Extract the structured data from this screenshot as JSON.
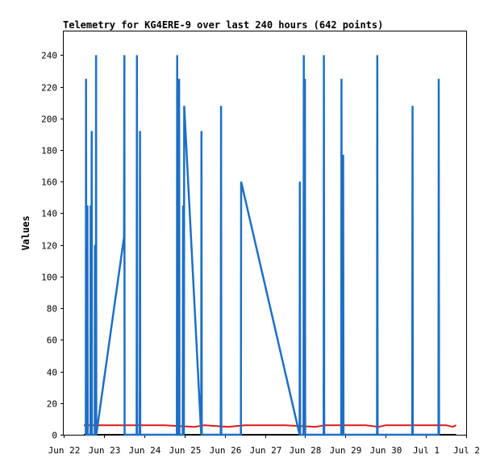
{
  "chart_data": {
    "type": "line",
    "title": "Telemetry for KG4ERE-9 over last 240 hours (642 points)",
    "xlabel": "",
    "ylabel": "Values",
    "xlim": [
      "2024-06-22",
      "2024-07-02"
    ],
    "ylim": [
      0,
      255
    ],
    "x_tick_labels": [
      "Jun 22",
      "Jun 23",
      "Jun 24",
      "Jun 25",
      "Jun 26",
      "Jun 27",
      "Jun 28",
      "Jun 29",
      "Jun 30",
      "Jul 1",
      "Jul 2"
    ],
    "y_ticks": [
      0,
      20,
      40,
      60,
      80,
      100,
      120,
      140,
      160,
      180,
      200,
      220,
      240
    ],
    "grid": false,
    "colors": {
      "series1": "#1e6fc4",
      "series2": "#e01818",
      "series3": "#000000"
    },
    "series": [
      {
        "values": [
          [
            "2024-06-22 13:12",
            0
          ],
          [
            "2024-06-22 13:20",
            225
          ],
          [
            "2024-06-22 13:30",
            0
          ],
          [
            "2024-06-22 14:00",
            0
          ],
          [
            "2024-06-22 14:08",
            145
          ],
          [
            "2024-06-22 14:16",
            0
          ],
          [
            "2024-06-22 15:55",
            0
          ],
          [
            "2024-06-22 16:05",
            145
          ],
          [
            "2024-06-22 16:15",
            0
          ],
          [
            "2024-06-22 16:30",
            0
          ],
          [
            "2024-06-22 16:40",
            192
          ],
          [
            "2024-06-22 16:50",
            0
          ],
          [
            "2024-06-22 18:30",
            0
          ],
          [
            "2024-06-22 18:38",
            120
          ],
          [
            "2024-06-22 18:46",
            0
          ],
          [
            "2024-06-22 19:10",
            0
          ],
          [
            "2024-06-22 19:18",
            240
          ],
          [
            "2024-06-22 19:26",
            0
          ],
          [
            "2024-06-23 12:00",
            125
          ],
          [
            "2024-06-23 12:10",
            240
          ],
          [
            "2024-06-23 12:20",
            0
          ],
          [
            "2024-06-23 19:30",
            0
          ],
          [
            "2024-06-23 19:40",
            240
          ],
          [
            "2024-06-23 19:50",
            0
          ],
          [
            "2024-06-23 21:20",
            0
          ],
          [
            "2024-06-23 21:30",
            192
          ],
          [
            "2024-06-23 21:40",
            0
          ],
          [
            "2024-06-24 19:30",
            0
          ],
          [
            "2024-06-24 19:40",
            240
          ],
          [
            "2024-06-24 19:50",
            0
          ],
          [
            "2024-06-24 20:40",
            0
          ],
          [
            "2024-06-24 20:50",
            225
          ],
          [
            "2024-06-24 21:00",
            0
          ],
          [
            "2024-06-24 23:00",
            0
          ],
          [
            "2024-06-24 23:10",
            145
          ],
          [
            "2024-06-24 23:20",
            0
          ],
          [
            "2024-06-24 23:40",
            0
          ],
          [
            "2024-06-24 23:50",
            208
          ],
          [
            "2024-06-25 10:00",
            0
          ],
          [
            "2024-06-25 10:10",
            192
          ],
          [
            "2024-06-25 10:20",
            0
          ],
          [
            "2024-06-25 21:40",
            0
          ],
          [
            "2024-06-25 21:50",
            208
          ],
          [
            "2024-06-25 22:00",
            0
          ],
          [
            "2024-06-26 09:40",
            0
          ],
          [
            "2024-06-26 09:50",
            160
          ],
          [
            "2024-06-27 20:40",
            0
          ],
          [
            "2024-06-27 20:50",
            160
          ],
          [
            "2024-06-27 21:00",
            0
          ],
          [
            "2024-06-27 23:00",
            0
          ],
          [
            "2024-06-27 23:10",
            240
          ],
          [
            "2024-06-27 23:20",
            0
          ],
          [
            "2024-06-27 23:40",
            0
          ],
          [
            "2024-06-27 23:50",
            225
          ],
          [
            "2024-06-28 00:00",
            0
          ],
          [
            "2024-06-28 11:00",
            0
          ],
          [
            "2024-06-28 11:10",
            240
          ],
          [
            "2024-06-28 11:20",
            0
          ],
          [
            "2024-06-28 21:30",
            0
          ],
          [
            "2024-06-28 21:40",
            225
          ],
          [
            "2024-06-28 21:50",
            0
          ],
          [
            "2024-06-28 22:30",
            0
          ],
          [
            "2024-06-28 22:40",
            177
          ],
          [
            "2024-06-28 22:50",
            0
          ],
          [
            "2024-06-29 18:50",
            0
          ],
          [
            "2024-06-29 19:00",
            240
          ],
          [
            "2024-06-29 19:10",
            0
          ],
          [
            "2024-06-30 15:50",
            0
          ],
          [
            "2024-06-30 16:00",
            208
          ],
          [
            "2024-06-30 16:10",
            0
          ],
          [
            "2024-07-01 07:30",
            0
          ],
          [
            "2024-07-01 07:40",
            225
          ],
          [
            "2024-07-01 07:50",
            0
          ]
        ]
      },
      {
        "values": [
          [
            "2024-06-22 12:00",
            6
          ],
          [
            "2024-06-23 12:00",
            6
          ],
          [
            "2024-06-24 12:00",
            6
          ],
          [
            "2024-06-25 06:00",
            5
          ],
          [
            "2024-06-25 12:00",
            6
          ],
          [
            "2024-06-26 02:00",
            5
          ],
          [
            "2024-06-26 12:00",
            6
          ],
          [
            "2024-06-27 12:00",
            6
          ],
          [
            "2024-06-28 06:00",
            5
          ],
          [
            "2024-06-28 12:00",
            6
          ],
          [
            "2024-06-29 12:00",
            6
          ],
          [
            "2024-06-29 20:00",
            5
          ],
          [
            "2024-06-30 00:00",
            6
          ],
          [
            "2024-07-01 12:00",
            6
          ],
          [
            "2024-07-01 16:00",
            5
          ],
          [
            "2024-07-01 18:00",
            6
          ]
        ]
      },
      {
        "values": [
          [
            "2024-06-22 12:00",
            0
          ],
          [
            "2024-07-01 18:00",
            0
          ]
        ]
      }
    ]
  }
}
